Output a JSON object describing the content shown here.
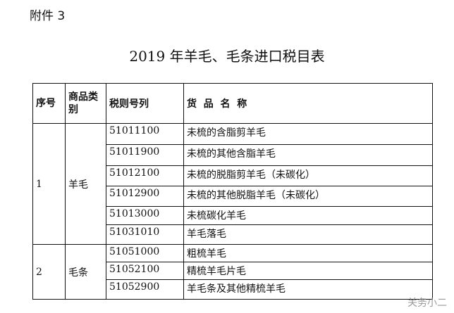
{
  "attachment": "附件 3",
  "title": "2019 年羊毛、毛条进口税目表",
  "headers": [
    "序号",
    "商品类别",
    "税则号列",
    "货  品  名  称"
  ],
  "groups": [
    {
      "no": "1",
      "category": "羊毛",
      "rows": [
        {
          "code": "51011100",
          "name": "未梳的含脂剪羊毛"
        },
        {
          "code": "51011900",
          "name": "未梳的其他含脂羊毛"
        },
        {
          "code": "51012100",
          "name": "未梳的脱脂剪羊毛（未碳化）"
        },
        {
          "code": "51012900",
          "name": "未梳的其他脱脂羊毛（未碳化）"
        },
        {
          "code": "51013000",
          "name": "未梳碳化羊毛"
        },
        {
          "code": "51031010",
          "name": "羊毛落毛"
        }
      ]
    },
    {
      "no": "2",
      "category": "毛条",
      "rows": [
        {
          "code": "51051000",
          "name": "粗梳羊毛"
        },
        {
          "code": "51052100",
          "name": "精梳羊毛片毛"
        },
        {
          "code": "51052900",
          "name": "羊毛条及其他精梳羊毛"
        }
      ]
    }
  ],
  "watermark": "关务小二"
}
